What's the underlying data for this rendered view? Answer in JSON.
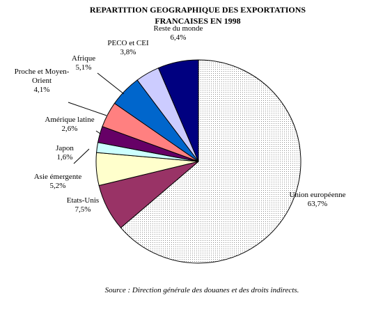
{
  "chart_data": {
    "type": "pie",
    "title": [
      "REPARTITION GEOGRAPHIQUE DES EXPORTATIONS",
      "FRANCAISES EN 1998"
    ],
    "unit": "%",
    "slices": [
      {
        "label": [
          "Union européenne"
        ],
        "value": 63.7,
        "value_label": "63,7%",
        "color": "#ffffff",
        "pattern": "dots"
      },
      {
        "label": [
          "Etats-Unis"
        ],
        "value": 7.5,
        "value_label": "7,5%",
        "color": "#993366"
      },
      {
        "label": [
          "Asie émergente"
        ],
        "value": 5.2,
        "value_label": "5,2%",
        "color": "#ffffcc"
      },
      {
        "label": [
          "Japon"
        ],
        "value": 1.6,
        "value_label": "1,6%",
        "color": "#ccffff"
      },
      {
        "label": [
          "Amérique latine"
        ],
        "value": 2.6,
        "value_label": "2,6%",
        "color": "#660066"
      },
      {
        "label": [
          "Proche et Moyen-",
          "Orient"
        ],
        "value": 4.1,
        "value_label": "4,1%",
        "color": "#ff8080"
      },
      {
        "label": [
          "Afrique"
        ],
        "value": 5.1,
        "value_label": "5,1%",
        "color": "#0066cc"
      },
      {
        "label": [
          "PECO et CEI"
        ],
        "value": 3.8,
        "value_label": "3,8%",
        "color": "#ccccff"
      },
      {
        "label": [
          "Reste du monde"
        ],
        "value": 6.4,
        "value_label": "6,4%",
        "color": "#000080"
      }
    ],
    "source": "Source : Direction générale des douanes et des droits indirects."
  }
}
